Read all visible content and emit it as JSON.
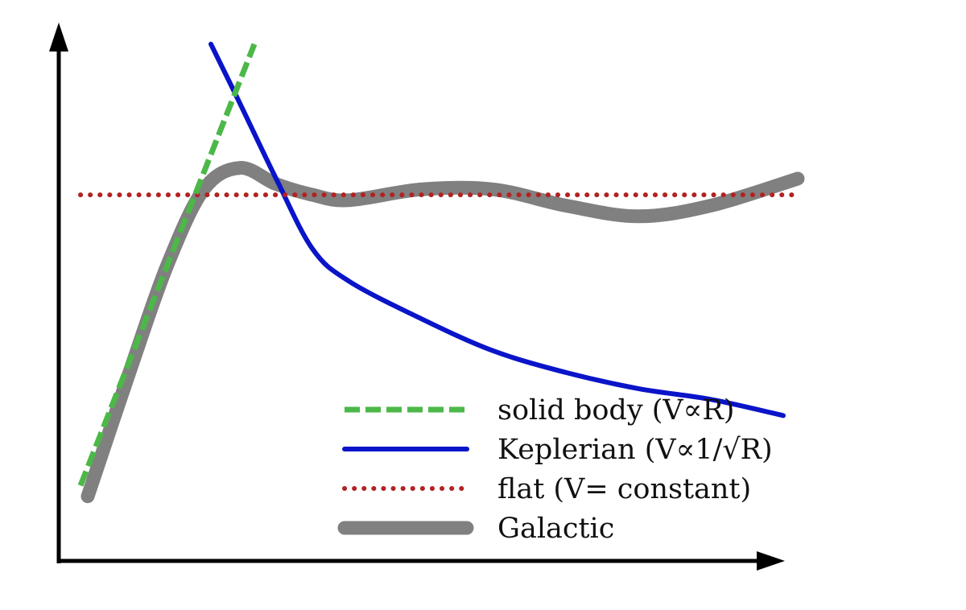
{
  "chart_data": {
    "type": "line",
    "title": "",
    "xlabel": "",
    "ylabel": "",
    "x_ticks": false,
    "y_ticks": false,
    "xlim": [
      0,
      10
    ],
    "ylim": [
      0,
      10
    ],
    "grid": false,
    "legend_position": "bottom-right",
    "series": [
      {
        "name": "solid body (V∝R)",
        "style": "dashed",
        "color": "#4cb848",
        "x": [
          0.3,
          2.7
        ],
        "y": [
          1.4,
          9.6
        ]
      },
      {
        "name": "Keplerian (V∝1/√R)",
        "style": "solid",
        "color": "#0a14c8",
        "x": [
          2.1,
          2.5,
          3.0,
          3.5,
          4.0,
          5.0,
          6.0,
          7.0,
          8.0,
          9.0,
          10.0
        ],
        "y": [
          9.6,
          8.5,
          7.1,
          5.8,
          5.2,
          4.5,
          3.9,
          3.5,
          3.2,
          3.0,
          2.7
        ]
      },
      {
        "name": "flat (V= constant)",
        "style": "dotted",
        "color": "#b22222",
        "x": [
          0.3,
          10.2
        ],
        "y": [
          6.8,
          6.8
        ]
      },
      {
        "name": "Galactic",
        "style": "thick-solid",
        "color": "#808080",
        "x": [
          0.4,
          1.0,
          1.5,
          2.0,
          2.5,
          3.0,
          3.5,
          4.0,
          5.0,
          6.0,
          7.0,
          8.0,
          9.0,
          10.2
        ],
        "y": [
          1.2,
          3.6,
          5.5,
          6.9,
          7.3,
          7.0,
          6.8,
          6.7,
          6.9,
          6.9,
          6.6,
          6.4,
          6.6,
          7.1
        ]
      }
    ]
  }
}
